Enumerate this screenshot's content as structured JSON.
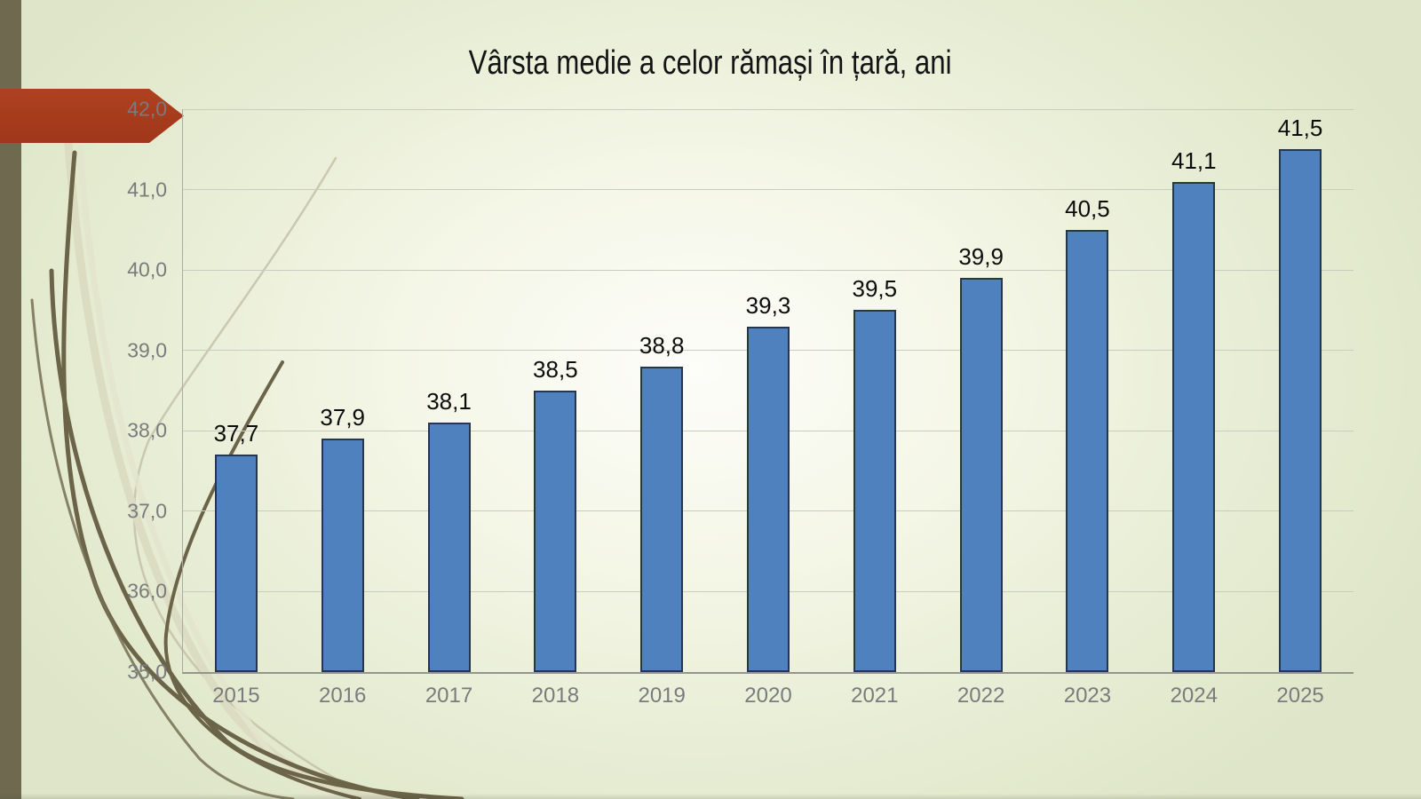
{
  "slide": {
    "title": "Vârsta medie a celor rămași în țară, ani"
  },
  "colors": {
    "bar_fill": "#4E81BD",
    "bar_border": "#26364C",
    "accent_arrow": "#A93B1B",
    "left_stripe": "#6F6950",
    "gridline": "#C9CCC1",
    "axis_line": "#94968E",
    "tick_text": "#7A7B7D",
    "value_label_text": "#0D0D0D",
    "background_center": "#FDFDF9",
    "background_edge": "#DEE5C8"
  },
  "chart_data": {
    "type": "bar",
    "title": "Vârsta medie a celor rămași în țară, ani",
    "categories": [
      "2015",
      "2016",
      "2017",
      "2018",
      "2019",
      "2020",
      "2021",
      "2022",
      "2023",
      "2024",
      "2025"
    ],
    "values": [
      37.7,
      37.9,
      38.1,
      38.5,
      38.8,
      39.3,
      39.5,
      39.9,
      40.5,
      41.1,
      41.5
    ],
    "value_labels": [
      "37,7",
      "37,9",
      "38,1",
      "38,5",
      "38,8",
      "39,3",
      "39,5",
      "39,9",
      "40,5",
      "41,1",
      "41,5"
    ],
    "xlabel": "",
    "ylabel": "",
    "ylim": [
      35,
      42
    ],
    "y_ticks": [
      {
        "value": 35,
        "label": "35,0"
      },
      {
        "value": 36,
        "label": "36,0"
      },
      {
        "value": 37,
        "label": "37,0"
      },
      {
        "value": 38,
        "label": "38,0"
      },
      {
        "value": 39,
        "label": "39,0"
      },
      {
        "value": 40,
        "label": "40,0"
      },
      {
        "value": 41,
        "label": "41,0"
      },
      {
        "value": 42,
        "label": "42,0"
      }
    ],
    "grid": true,
    "legend": "none",
    "decimal_separator": ","
  }
}
